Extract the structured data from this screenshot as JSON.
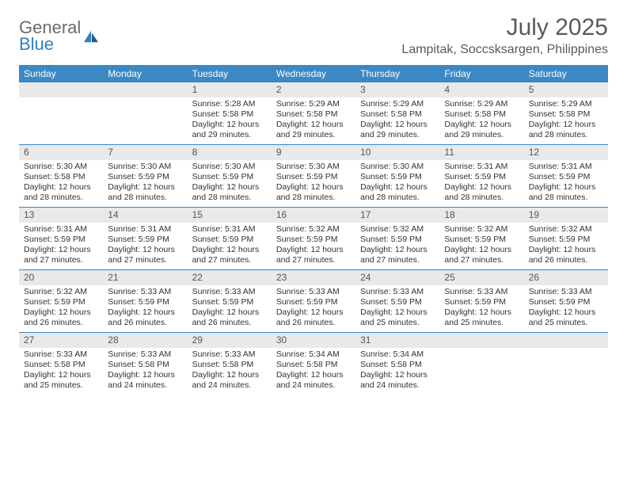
{
  "logo": {
    "general": "General",
    "blue": "Blue"
  },
  "title": "July 2025",
  "location": "Lampitak, Soccsksargen, Philippines",
  "colors": {
    "header_bg": "#3b88c4",
    "header_text": "#ffffff",
    "daynum_bg": "#e9e9e9",
    "week_border": "#3b88c4",
    "logo_gray": "#6b6b6b",
    "logo_blue": "#2f7fc0",
    "text": "#333333"
  },
  "day_names": [
    "Sunday",
    "Monday",
    "Tuesday",
    "Wednesday",
    "Thursday",
    "Friday",
    "Saturday"
  ],
  "weeks": [
    [
      null,
      null,
      {
        "n": "1",
        "sr": "5:28 AM",
        "ss": "5:58 PM",
        "dl": "12 hours and 29 minutes."
      },
      {
        "n": "2",
        "sr": "5:29 AM",
        "ss": "5:58 PM",
        "dl": "12 hours and 29 minutes."
      },
      {
        "n": "3",
        "sr": "5:29 AM",
        "ss": "5:58 PM",
        "dl": "12 hours and 29 minutes."
      },
      {
        "n": "4",
        "sr": "5:29 AM",
        "ss": "5:58 PM",
        "dl": "12 hours and 29 minutes."
      },
      {
        "n": "5",
        "sr": "5:29 AM",
        "ss": "5:58 PM",
        "dl": "12 hours and 28 minutes."
      }
    ],
    [
      {
        "n": "6",
        "sr": "5:30 AM",
        "ss": "5:58 PM",
        "dl": "12 hours and 28 minutes."
      },
      {
        "n": "7",
        "sr": "5:30 AM",
        "ss": "5:59 PM",
        "dl": "12 hours and 28 minutes."
      },
      {
        "n": "8",
        "sr": "5:30 AM",
        "ss": "5:59 PM",
        "dl": "12 hours and 28 minutes."
      },
      {
        "n": "9",
        "sr": "5:30 AM",
        "ss": "5:59 PM",
        "dl": "12 hours and 28 minutes."
      },
      {
        "n": "10",
        "sr": "5:30 AM",
        "ss": "5:59 PM",
        "dl": "12 hours and 28 minutes."
      },
      {
        "n": "11",
        "sr": "5:31 AM",
        "ss": "5:59 PM",
        "dl": "12 hours and 28 minutes."
      },
      {
        "n": "12",
        "sr": "5:31 AM",
        "ss": "5:59 PM",
        "dl": "12 hours and 28 minutes."
      }
    ],
    [
      {
        "n": "13",
        "sr": "5:31 AM",
        "ss": "5:59 PM",
        "dl": "12 hours and 27 minutes."
      },
      {
        "n": "14",
        "sr": "5:31 AM",
        "ss": "5:59 PM",
        "dl": "12 hours and 27 minutes."
      },
      {
        "n": "15",
        "sr": "5:31 AM",
        "ss": "5:59 PM",
        "dl": "12 hours and 27 minutes."
      },
      {
        "n": "16",
        "sr": "5:32 AM",
        "ss": "5:59 PM",
        "dl": "12 hours and 27 minutes."
      },
      {
        "n": "17",
        "sr": "5:32 AM",
        "ss": "5:59 PM",
        "dl": "12 hours and 27 minutes."
      },
      {
        "n": "18",
        "sr": "5:32 AM",
        "ss": "5:59 PM",
        "dl": "12 hours and 27 minutes."
      },
      {
        "n": "19",
        "sr": "5:32 AM",
        "ss": "5:59 PM",
        "dl": "12 hours and 26 minutes."
      }
    ],
    [
      {
        "n": "20",
        "sr": "5:32 AM",
        "ss": "5:59 PM",
        "dl": "12 hours and 26 minutes."
      },
      {
        "n": "21",
        "sr": "5:33 AM",
        "ss": "5:59 PM",
        "dl": "12 hours and 26 minutes."
      },
      {
        "n": "22",
        "sr": "5:33 AM",
        "ss": "5:59 PM",
        "dl": "12 hours and 26 minutes."
      },
      {
        "n": "23",
        "sr": "5:33 AM",
        "ss": "5:59 PM",
        "dl": "12 hours and 26 minutes."
      },
      {
        "n": "24",
        "sr": "5:33 AM",
        "ss": "5:59 PM",
        "dl": "12 hours and 25 minutes."
      },
      {
        "n": "25",
        "sr": "5:33 AM",
        "ss": "5:59 PM",
        "dl": "12 hours and 25 minutes."
      },
      {
        "n": "26",
        "sr": "5:33 AM",
        "ss": "5:59 PM",
        "dl": "12 hours and 25 minutes."
      }
    ],
    [
      {
        "n": "27",
        "sr": "5:33 AM",
        "ss": "5:58 PM",
        "dl": "12 hours and 25 minutes."
      },
      {
        "n": "28",
        "sr": "5:33 AM",
        "ss": "5:58 PM",
        "dl": "12 hours and 24 minutes."
      },
      {
        "n": "29",
        "sr": "5:33 AM",
        "ss": "5:58 PM",
        "dl": "12 hours and 24 minutes."
      },
      {
        "n": "30",
        "sr": "5:34 AM",
        "ss": "5:58 PM",
        "dl": "12 hours and 24 minutes."
      },
      {
        "n": "31",
        "sr": "5:34 AM",
        "ss": "5:58 PM",
        "dl": "12 hours and 24 minutes."
      },
      null,
      null
    ]
  ],
  "labels": {
    "sunrise": "Sunrise: ",
    "sunset": "Sunset: ",
    "daylight": "Daylight: "
  }
}
